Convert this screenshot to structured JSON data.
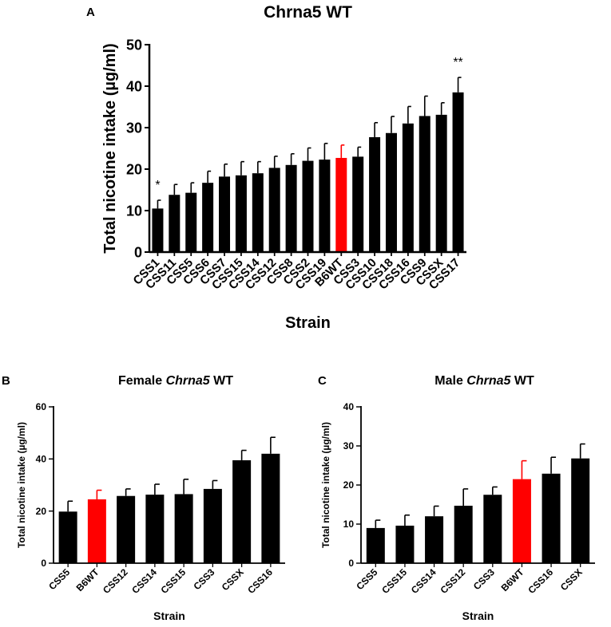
{
  "colors": {
    "bar": "#000000",
    "highlight": "#ff0000",
    "axis": "#000000"
  },
  "chart_data": [
    {
      "panel": "A",
      "type": "bar",
      "title": "Chrna5 WT",
      "title_parts": [
        {
          "text": "Chrna5 WT",
          "italic": false
        }
      ],
      "xlabel": "Strain",
      "ylabel": "Total nicotine intake (µg/ml)",
      "ylim": [
        0,
        50
      ],
      "yticks": [
        "0",
        "10",
        "20",
        "30",
        "40",
        "50"
      ],
      "highlight_category": "B6WT",
      "categories": [
        "CSS1",
        "CSS11",
        "CSS5",
        "CSS6",
        "CSS7",
        "CSS15",
        "CSS14",
        "CSS12",
        "CSS8",
        "CSS2",
        "CSS19",
        "B6WT",
        "CSS3",
        "CSS10",
        "CSS18",
        "CSS16",
        "CSS9",
        "CSSX",
        "CSS17"
      ],
      "values": [
        10.5,
        13.8,
        14.3,
        16.7,
        18.2,
        18.5,
        19.0,
        20.3,
        21.0,
        22.0,
        22.3,
        22.7,
        23.0,
        27.7,
        28.7,
        31.0,
        32.8,
        33.1,
        38.5
      ],
      "errors": [
        2.0,
        2.5,
        2.4,
        2.8,
        3.0,
        3.3,
        2.8,
        2.8,
        2.7,
        3.1,
        3.9,
        3.1,
        2.3,
        3.5,
        4.0,
        4.1,
        4.8,
        2.9,
        3.6
      ],
      "annotations": [
        {
          "category": "CSS1",
          "text": "*"
        },
        {
          "category": "CSS17",
          "text": "**"
        }
      ]
    },
    {
      "panel": "B",
      "type": "bar",
      "title": "Female Chrna5 WT",
      "title_parts": [
        {
          "text": "Female ",
          "italic": false
        },
        {
          "text": "Chrna5",
          "italic": true
        },
        {
          "text": " WT",
          "italic": false
        }
      ],
      "xlabel": "Strain",
      "ylabel": "Total nicotine intake (µg/ml)",
      "ylim": [
        0,
        60
      ],
      "yticks": [
        "0",
        "20",
        "40",
        "60"
      ],
      "highlight_category": "B6WT",
      "categories": [
        "CSS5",
        "B6WT",
        "CSS12",
        "CSS14",
        "CSS15",
        "CSS3",
        "CSSX",
        "CSS16"
      ],
      "values": [
        19.8,
        24.5,
        25.8,
        26.3,
        26.5,
        28.5,
        39.5,
        42.0
      ],
      "errors": [
        4.0,
        3.5,
        2.7,
        4.0,
        5.7,
        3.2,
        3.8,
        6.3
      ],
      "annotations": []
    },
    {
      "panel": "C",
      "type": "bar",
      "title": "Male Chrna5 WT",
      "title_parts": [
        {
          "text": "Male ",
          "italic": false
        },
        {
          "text": "Chrna5",
          "italic": true
        },
        {
          "text": " WT",
          "italic": false
        }
      ],
      "xlabel": "Strain",
      "ylabel": "Total nicotine intake (µg/ml)",
      "ylim": [
        0,
        40
      ],
      "yticks": [
        "0",
        "10",
        "20",
        "30",
        "40"
      ],
      "highlight_category": "B6WT",
      "categories": [
        "CSS5",
        "CSS15",
        "CSS14",
        "CSS12",
        "CSS3",
        "B6WT",
        "CSS16",
        "CSSX"
      ],
      "values": [
        9.0,
        9.6,
        12.0,
        14.7,
        17.5,
        21.5,
        22.9,
        26.8
      ],
      "errors": [
        2.0,
        2.7,
        2.6,
        4.3,
        2.0,
        4.7,
        4.2,
        3.7
      ],
      "annotations": []
    }
  ]
}
